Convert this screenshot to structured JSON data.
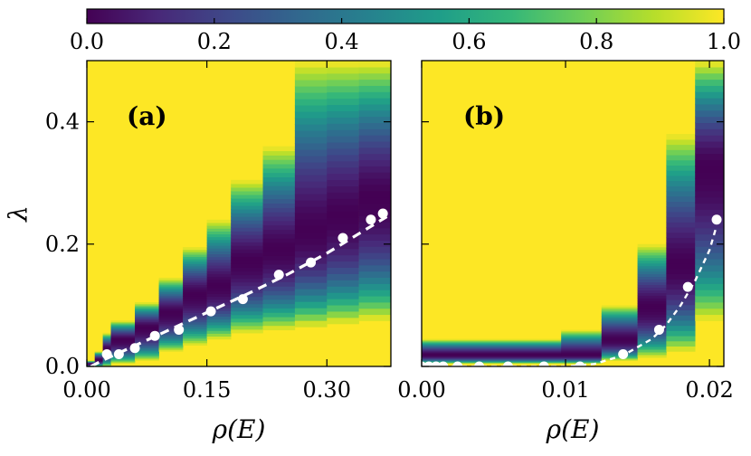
{
  "colorbar": {
    "ticks": [
      "0.0",
      "0.2",
      "0.4",
      "0.6",
      "0.8",
      "1.0"
    ],
    "colors": [
      "#440154",
      "#482878",
      "#3e4989",
      "#31688e",
      "#26828e",
      "#1f9e89",
      "#35b779",
      "#6ece58",
      "#b5de2b",
      "#fde725"
    ]
  },
  "ylabel": "λ",
  "chart_data": [
    {
      "type": "heatmap",
      "panel_label": "(a)",
      "xlabel": "ρ(E)",
      "ylabel": "λ",
      "xlim": [
        0.0,
        0.38
      ],
      "ylim": [
        0.0,
        0.5
      ],
      "xtick_values": [
        0.0,
        0.15,
        0.3
      ],
      "xtick_labels": [
        "0.00",
        "0.15",
        "0.30"
      ],
      "ytick_values": [
        0.0,
        0.2,
        0.4
      ],
      "ytick_labels": [
        "0.0",
        "0.2",
        "0.4"
      ],
      "columns": [
        {
          "x0": 0.0,
          "x1": 0.01,
          "lo": 0.0,
          "hi": 0.005,
          "top": 0.01
        },
        {
          "x0": 0.01,
          "x1": 0.02,
          "lo": 0.0,
          "hi": 0.012,
          "top": 0.025
        },
        {
          "x0": 0.02,
          "x1": 0.03,
          "lo": 0.0,
          "hi": 0.03,
          "top": 0.055
        },
        {
          "x0": 0.03,
          "x1": 0.06,
          "lo": 0.005,
          "hi": 0.045,
          "top": 0.075
        },
        {
          "x0": 0.06,
          "x1": 0.09,
          "lo": 0.01,
          "hi": 0.065,
          "top": 0.105
        },
        {
          "x0": 0.09,
          "x1": 0.12,
          "lo": 0.025,
          "hi": 0.09,
          "top": 0.145
        },
        {
          "x0": 0.12,
          "x1": 0.15,
          "lo": 0.035,
          "hi": 0.12,
          "top": 0.195
        },
        {
          "x0": 0.15,
          "x1": 0.18,
          "lo": 0.045,
          "hi": 0.135,
          "top": 0.24
        },
        {
          "x0": 0.18,
          "x1": 0.22,
          "lo": 0.055,
          "hi": 0.175,
          "top": 0.305
        },
        {
          "x0": 0.22,
          "x1": 0.26,
          "lo": 0.06,
          "hi": 0.195,
          "top": 0.36
        },
        {
          "x0": 0.26,
          "x1": 0.3,
          "lo": 0.065,
          "hi": 0.225,
          "top": 0.5
        },
        {
          "x0": 0.3,
          "x1": 0.34,
          "lo": 0.07,
          "hi": 0.25,
          "top": 0.5
        },
        {
          "x0": 0.34,
          "x1": 0.38,
          "lo": 0.075,
          "hi": 0.28,
          "top": 0.5
        }
      ],
      "points": {
        "x": [
          0.025,
          0.04,
          0.06,
          0.085,
          0.115,
          0.155,
          0.195,
          0.24,
          0.28,
          0.32,
          0.355,
          0.37
        ],
        "y": [
          0.02,
          0.02,
          0.03,
          0.05,
          0.06,
          0.09,
          0.11,
          0.15,
          0.17,
          0.21,
          0.24,
          0.25
        ]
      },
      "fit": {
        "x": [
          0.005,
          0.02,
          0.05,
          0.1,
          0.15,
          0.2,
          0.25,
          0.3,
          0.35,
          0.375
        ],
        "y": [
          0.0,
          0.01,
          0.028,
          0.058,
          0.088,
          0.118,
          0.15,
          0.185,
          0.225,
          0.245
        ]
      }
    },
    {
      "type": "heatmap",
      "panel_label": "(b)",
      "xlabel": "ρ(E)",
      "ylabel": "",
      "xlim": [
        0.0,
        0.021
      ],
      "ylim": [
        0.0,
        0.5
      ],
      "xtick_values": [
        0.0,
        0.01,
        0.02
      ],
      "xtick_labels": [
        "0.00",
        "0.01",
        "0.02"
      ],
      "ytick_values": [
        0.0,
        0.2,
        0.4
      ],
      "ytick_labels": [],
      "columns": [
        {
          "x0": 0.0,
          "x1": 0.0097,
          "lo": 0.005,
          "hi": 0.02,
          "top": 0.045
        },
        {
          "x0": 0.0097,
          "x1": 0.0125,
          "lo": 0.005,
          "hi": 0.02,
          "top": 0.06
        },
        {
          "x0": 0.0125,
          "x1": 0.015,
          "lo": 0.01,
          "hi": 0.045,
          "top": 0.1
        },
        {
          "x0": 0.015,
          "x1": 0.017,
          "lo": 0.015,
          "hi": 0.1,
          "top": 0.2
        },
        {
          "x0": 0.017,
          "x1": 0.019,
          "lo": 0.025,
          "hi": 0.17,
          "top": 0.38
        },
        {
          "x0": 0.019,
          "x1": 0.021,
          "lo": 0.075,
          "hi": 0.33,
          "top": 0.5
        }
      ],
      "points": {
        "x": [
          0.0,
          0.0005,
          0.001,
          0.0015,
          0.0025,
          0.004,
          0.006,
          0.0085,
          0.011,
          0.014,
          0.0165,
          0.0185,
          0.0205
        ],
        "y": [
          0.0,
          0.0,
          0.0,
          0.0,
          0.0,
          0.0,
          0.0,
          0.0,
          0.0,
          0.02,
          0.06,
          0.13,
          0.24
        ]
      },
      "fit": {
        "x": [
          0.0,
          0.005,
          0.01,
          0.012,
          0.014,
          0.016,
          0.017,
          0.018,
          0.019,
          0.02,
          0.0205
        ],
        "y": [
          0.0,
          0.0,
          0.0,
          0.004,
          0.018,
          0.045,
          0.068,
          0.1,
          0.14,
          0.19,
          0.23
        ]
      }
    }
  ]
}
